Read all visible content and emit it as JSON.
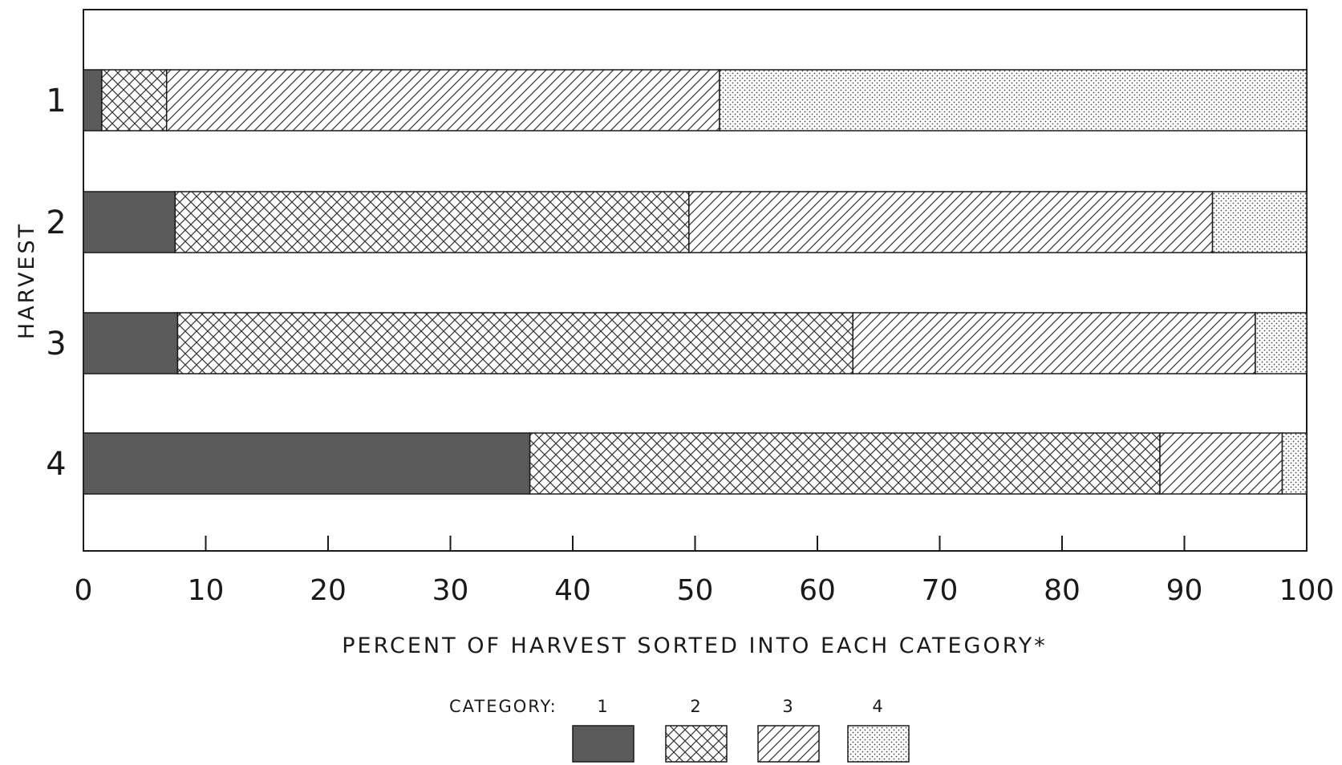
{
  "chart_data": {
    "type": "bar",
    "orientation": "horizontal",
    "stacked": true,
    "xlabel": "PERCENT OF HARVEST SORTED INTO EACH CATEGORY*",
    "ylabel": "HARVEST",
    "xlim": [
      0,
      100
    ],
    "x_ticks": [
      0,
      10,
      20,
      30,
      40,
      50,
      60,
      70,
      80,
      90,
      100
    ],
    "categories": [
      "1",
      "2",
      "3",
      "4"
    ],
    "series": [
      {
        "name": "1",
        "values": [
          1.5,
          7.5,
          7.7,
          36.5
        ]
      },
      {
        "name": "2",
        "values": [
          5.3,
          42.0,
          55.2,
          51.5
        ]
      },
      {
        "name": "3",
        "values": [
          45.2,
          42.8,
          32.9,
          10.0
        ]
      },
      {
        "name": "4",
        "values": [
          48.0,
          7.7,
          4.2,
          2.0
        ]
      }
    ],
    "legend": {
      "title": "CATEGORY:",
      "placement": "bottom",
      "entries": [
        "1",
        "2",
        "3",
        "4"
      ]
    },
    "grid": false,
    "patterns": [
      "solid-dark",
      "crosshatch",
      "diagonal",
      "dots"
    ]
  }
}
